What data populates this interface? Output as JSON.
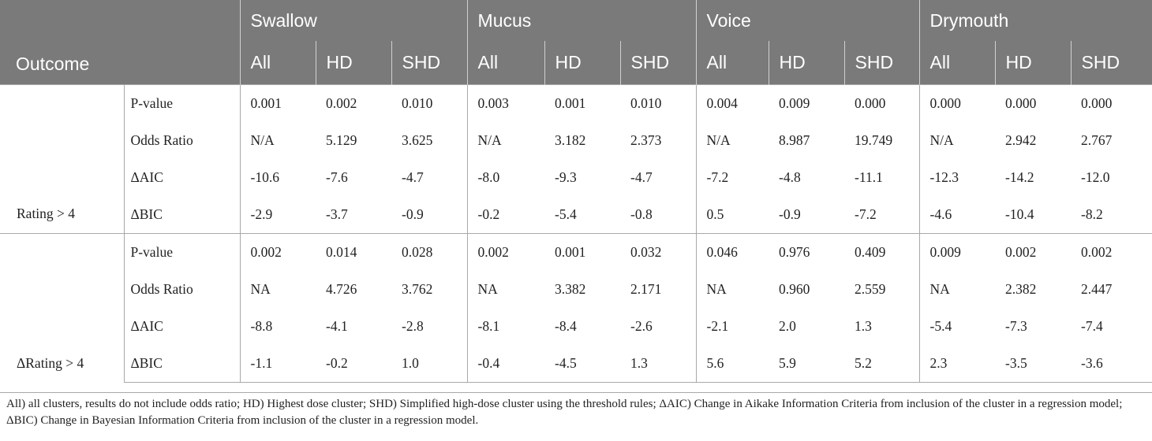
{
  "header": {
    "outcome": "Outcome",
    "groups": [
      "Swallow",
      "Mucus",
      "Voice",
      "Drymouth"
    ],
    "subcols": [
      "All",
      "HD",
      "SHD"
    ]
  },
  "sections": [
    {
      "label": "Rating > 4",
      "rows": [
        {
          "metric": "P-value",
          "values": [
            "0.001",
            "0.002",
            "0.010",
            "0.003",
            "0.001",
            "0.010",
            "0.004",
            "0.009",
            "0.000",
            "0.000",
            "0.000",
            "0.000"
          ]
        },
        {
          "metric": "Odds Ratio",
          "values": [
            "N/A",
            "5.129",
            "3.625",
            "N/A",
            "3.182",
            "2.373",
            "N/A",
            "8.987",
            "19.749",
            "N/A",
            "2.942",
            "2.767"
          ]
        },
        {
          "metric": "ΔAIC",
          "values": [
            "-10.6",
            "-7.6",
            "-4.7",
            "-8.0",
            "-9.3",
            "-4.7",
            "-7.2",
            "-4.8",
            "-11.1",
            "-12.3",
            "-14.2",
            "-12.0"
          ]
        },
        {
          "metric": "ΔBIC",
          "values": [
            "-2.9",
            "-3.7",
            "-0.9",
            "-0.2",
            "-5.4",
            "-0.8",
            "0.5",
            "-0.9",
            "-7.2",
            "-4.6",
            "-10.4",
            "-8.2"
          ]
        }
      ]
    },
    {
      "label": "ΔRating > 4",
      "rows": [
        {
          "metric": "P-value",
          "values": [
            "0.002",
            "0.014",
            "0.028",
            "0.002",
            "0.001",
            "0.032",
            "0.046",
            "0.976",
            "0.409",
            "0.009",
            "0.002",
            "0.002"
          ]
        },
        {
          "metric": "Odds Ratio",
          "values": [
            "NA",
            "4.726",
            "3.762",
            "NA",
            "3.382",
            "2.171",
            "NA",
            "0.960",
            "2.559",
            "NA",
            "2.382",
            "2.447"
          ]
        },
        {
          "metric": "ΔAIC",
          "values": [
            "-8.8",
            "-4.1",
            "-2.8",
            "-8.1",
            "-8.4",
            "-2.6",
            "-2.1",
            "2.0",
            "1.3",
            "-5.4",
            "-7.3",
            "-7.4"
          ]
        },
        {
          "metric": "ΔBIC",
          "values": [
            "-1.1",
            "-0.2",
            "1.0",
            "-0.4",
            "-4.5",
            "1.3",
            "5.6",
            "5.9",
            "5.2",
            "2.3",
            "-3.5",
            "-3.6"
          ]
        }
      ]
    }
  ],
  "footnote": "All) all clusters, results do not include odds ratio; HD) Highest dose cluster; SHD) Simplified high-dose cluster using the threshold rules; ΔAIC) Change in Aikake Information Criteria from inclusion of the cluster in a regression model; ΔBIC) Change in Bayesian Information Criteria from inclusion of the cluster in a regression model."
}
